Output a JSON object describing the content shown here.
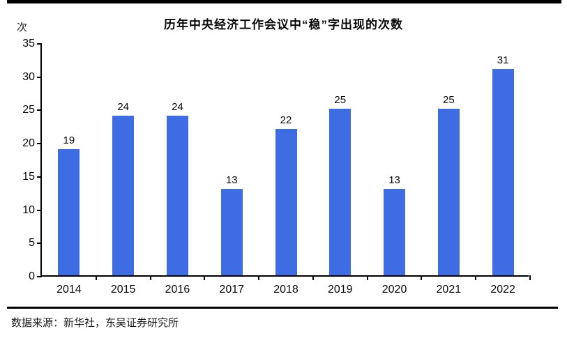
{
  "page": {
    "title": "历年中央经济工作会议中“稳”字出现的次数",
    "y_unit_label": "次",
    "source_text": "数据来源：新华社，东吴证券研究所"
  },
  "chart_data": {
    "type": "bar",
    "title": "历年中央经济工作会议中“稳”字出现的次数",
    "categories": [
      "2014",
      "2015",
      "2016",
      "2017",
      "2018",
      "2019",
      "2020",
      "2021",
      "2022"
    ],
    "values": [
      19,
      24,
      24,
      13,
      22,
      25,
      13,
      25,
      31
    ],
    "xlabel": "",
    "ylabel": "次",
    "ylim": [
      0,
      35
    ],
    "yticks": [
      0,
      5,
      10,
      15,
      20,
      25,
      30,
      35
    ],
    "grid": false,
    "legend": null,
    "value_labels": true,
    "bar_color": "#3D6CE3",
    "source": "数据来源：新华社，东吴证券研究所"
  }
}
